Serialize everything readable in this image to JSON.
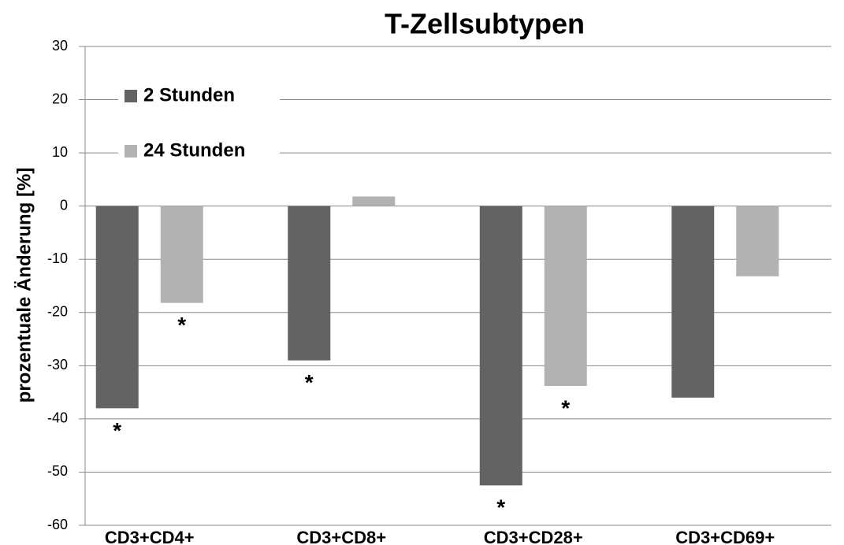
{
  "chart_data": {
    "type": "bar",
    "title": "T-Zellsubtypen",
    "ylabel": "prozentuale Änderung [%]",
    "categories": [
      "CD3+CD4+",
      "CD3+CD8+",
      "CD3+CD28+",
      "CD3+CD69+"
    ],
    "series": [
      {
        "name": "2 Stunden",
        "color": "#636363",
        "values": [
          -38,
          -29,
          -52.5,
          -36
        ],
        "annotations": [
          "*",
          "*",
          "*",
          null
        ]
      },
      {
        "name": "24 Stunden",
        "color": "#b2b2b2",
        "values": [
          -18.2,
          1.8,
          -33.8,
          -13.2
        ],
        "annotations": [
          "*",
          null,
          "*",
          null
        ]
      }
    ],
    "ylim": [
      -60,
      30
    ],
    "yticks": [
      -60,
      -50,
      -40,
      -30,
      -20,
      -10,
      0,
      10,
      20,
      30
    ],
    "grid": true,
    "legend": "upper left"
  }
}
